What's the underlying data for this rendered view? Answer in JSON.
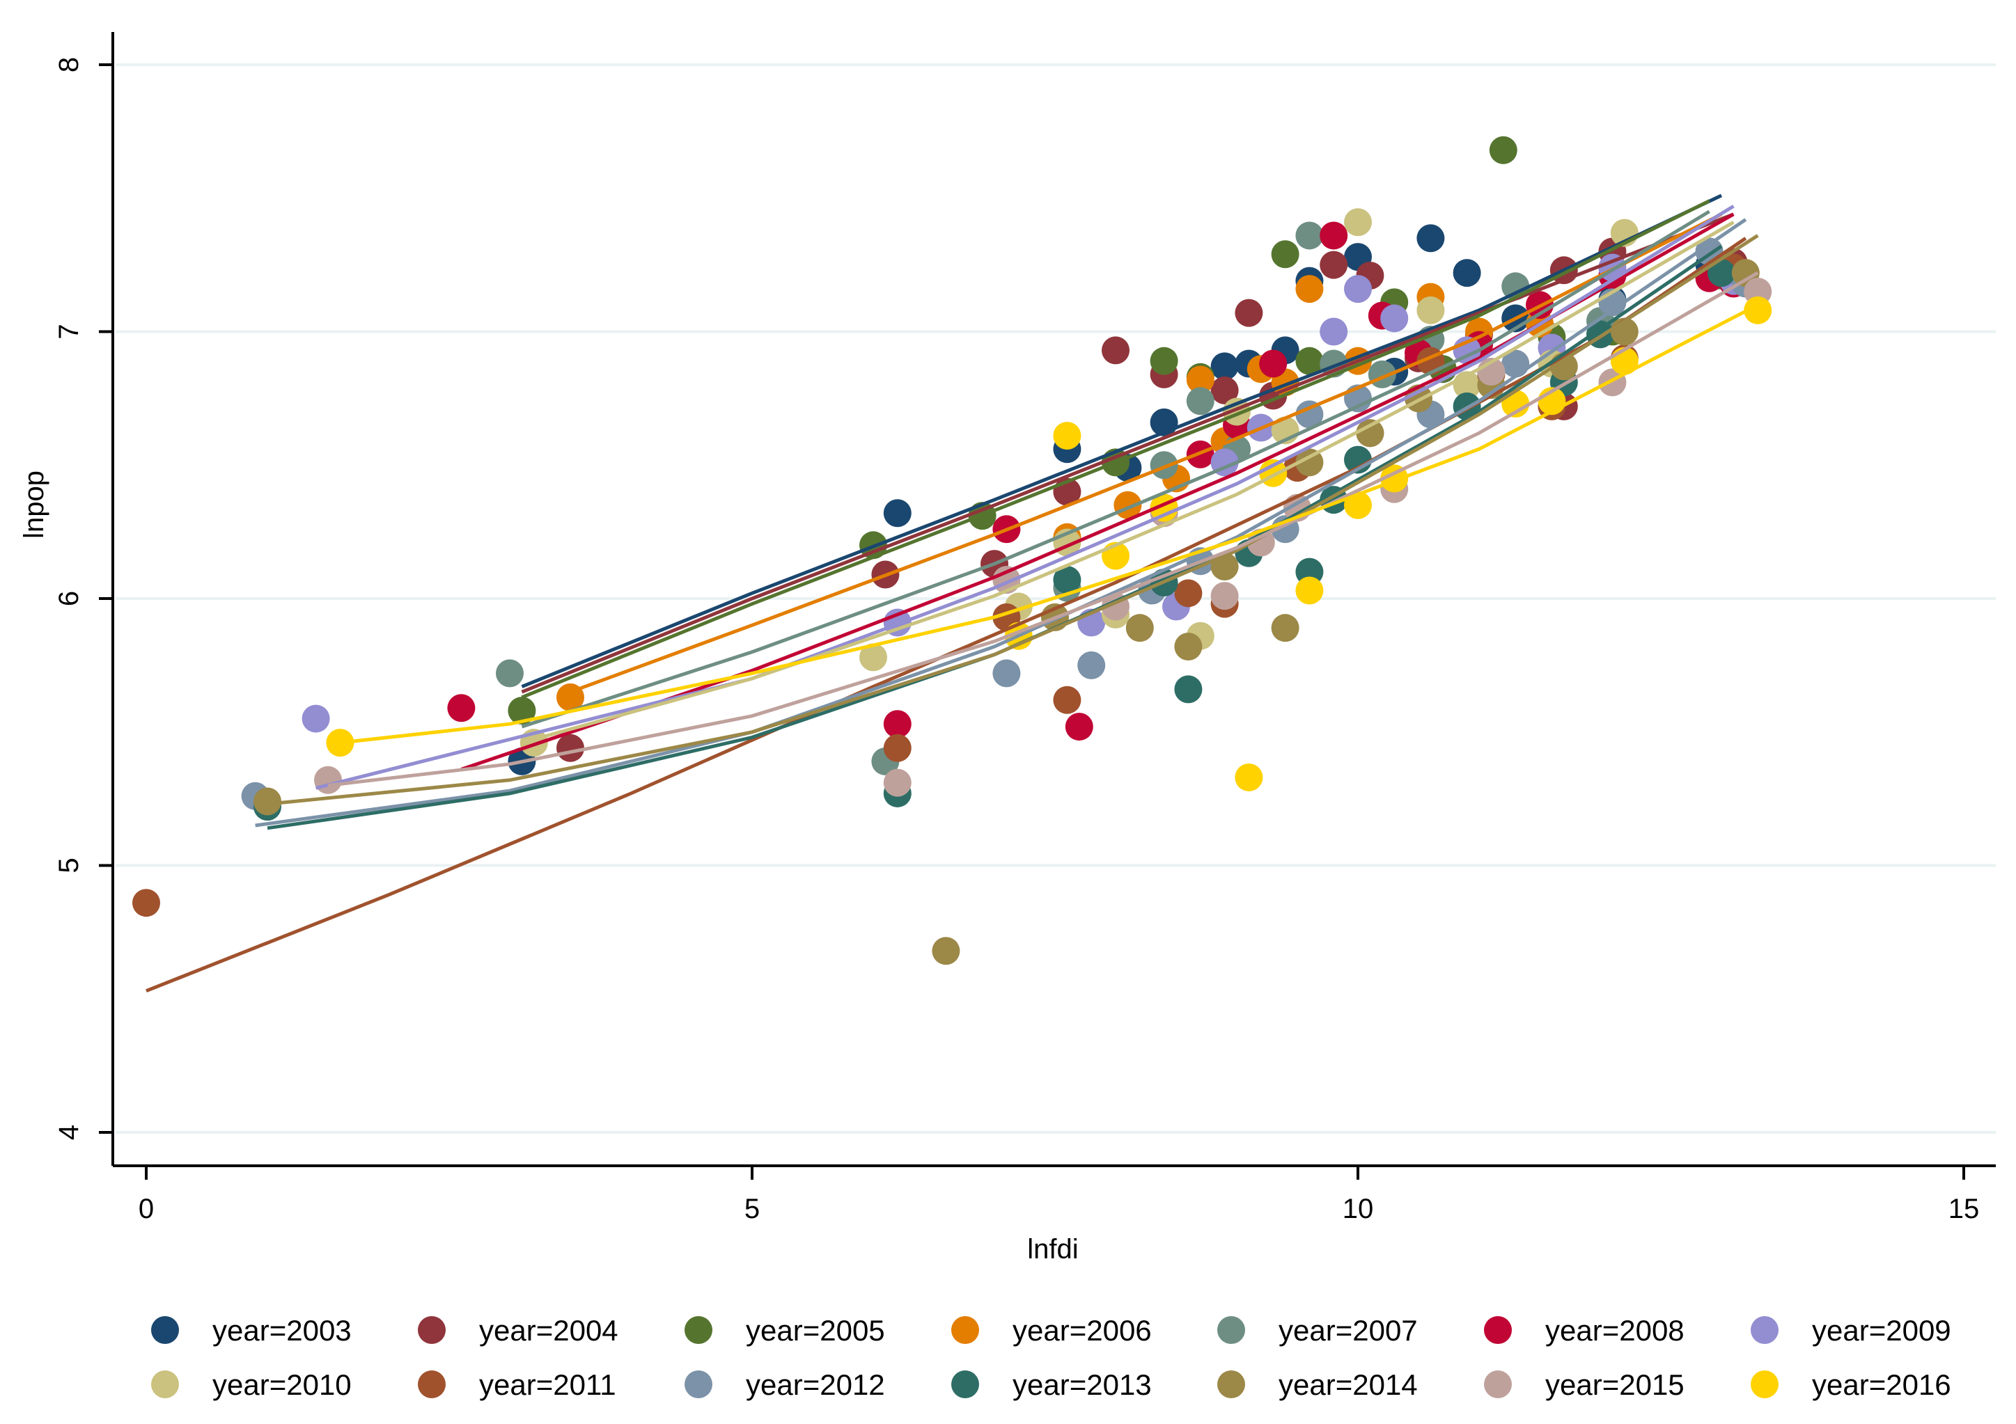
{
  "chart_data": {
    "type": "scatter",
    "xlabel": "lnfdi",
    "ylabel": "lnpop",
    "xlim": [
      0,
      15
    ],
    "ylim": [
      4,
      8
    ],
    "x_ticks": [
      0,
      5,
      10,
      15
    ],
    "y_ticks": [
      4,
      5,
      6,
      7,
      8
    ],
    "grid": "horizontal",
    "legend_position": "bottom",
    "series": [
      {
        "name": "year=2003",
        "color": "#1a476f",
        "points": [
          [
            3.1,
            5.39
          ],
          [
            6.2,
            6.32
          ],
          [
            7.6,
            6.56
          ],
          [
            8.1,
            6.49
          ],
          [
            8.4,
            6.66
          ],
          [
            8.9,
            6.87
          ],
          [
            9.1,
            6.88
          ],
          [
            9.4,
            6.93
          ],
          [
            9.6,
            7.19
          ],
          [
            10.0,
            7.28
          ],
          [
            10.6,
            7.35
          ],
          [
            10.3,
            6.85
          ],
          [
            10.9,
            7.22
          ],
          [
            11.3,
            7.05
          ],
          [
            12.1,
            7.12
          ],
          [
            12.9,
            7.25
          ],
          [
            13.1,
            7.19
          ]
        ],
        "line": [
          [
            3.1,
            5.67
          ],
          [
            5.0,
            6.02
          ],
          [
            7.0,
            6.37
          ],
          [
            9.0,
            6.73
          ],
          [
            11.0,
            7.08
          ],
          [
            13.0,
            7.51
          ]
        ]
      },
      {
        "name": "year=2004",
        "color": "#90353b",
        "points": [
          [
            3.5,
            5.44
          ],
          [
            6.1,
            6.09
          ],
          [
            7.0,
            6.13
          ],
          [
            7.6,
            6.4
          ],
          [
            8.0,
            6.93
          ],
          [
            8.4,
            6.84
          ],
          [
            8.9,
            6.78
          ],
          [
            9.1,
            7.07
          ],
          [
            9.3,
            6.76
          ],
          [
            9.8,
            7.25
          ],
          [
            10.1,
            7.21
          ],
          [
            10.5,
            6.9
          ],
          [
            11.0,
            6.99
          ],
          [
            11.7,
            7.23
          ],
          [
            11.7,
            6.72
          ],
          [
            12.1,
            7.3
          ],
          [
            13.1,
            7.26
          ]
        ],
        "line": [
          [
            3.1,
            5.65
          ],
          [
            5.0,
            6.0
          ],
          [
            7.0,
            6.35
          ],
          [
            9.0,
            6.71
          ],
          [
            11.0,
            7.07
          ],
          [
            13.1,
            7.44
          ]
        ]
      },
      {
        "name": "year=2005",
        "color": "#55752f",
        "points": [
          [
            3.1,
            5.58
          ],
          [
            6.0,
            6.2
          ],
          [
            6.9,
            6.31
          ],
          [
            8.0,
            6.51
          ],
          [
            8.4,
            6.89
          ],
          [
            8.7,
            6.83
          ],
          [
            9.4,
            7.29
          ],
          [
            9.6,
            6.89
          ],
          [
            10.3,
            7.11
          ],
          [
            10.7,
            6.86
          ],
          [
            11.2,
            7.68
          ],
          [
            11.6,
            6.98
          ],
          [
            12.1,
            7.0
          ],
          [
            13.0,
            7.21
          ]
        ],
        "line": [
          [
            3.1,
            5.63
          ],
          [
            5.0,
            5.98
          ],
          [
            7.0,
            6.33
          ],
          [
            9.0,
            6.69
          ],
          [
            11.0,
            7.06
          ],
          [
            12.9,
            7.49
          ]
        ]
      },
      {
        "name": "year=2006",
        "color": "#e37e00",
        "points": [
          [
            3.5,
            5.63
          ],
          [
            7.6,
            6.23
          ],
          [
            8.1,
            6.35
          ],
          [
            8.5,
            6.45
          ],
          [
            8.7,
            6.82
          ],
          [
            8.9,
            6.59
          ],
          [
            9.2,
            6.86
          ],
          [
            9.4,
            6.81
          ],
          [
            9.6,
            7.16
          ],
          [
            10.0,
            6.89
          ],
          [
            10.6,
            7.13
          ],
          [
            11.0,
            7.0
          ],
          [
            11.5,
            7.03
          ],
          [
            13.0,
            7.22
          ]
        ],
        "line": [
          [
            3.5,
            5.65
          ],
          [
            5.0,
            5.9
          ],
          [
            7.0,
            6.24
          ],
          [
            9.0,
            6.6
          ],
          [
            11.0,
            6.98
          ],
          [
            13.0,
            7.44
          ]
        ]
      },
      {
        "name": "year=2007",
        "color": "#6e8e84",
        "points": [
          [
            3.0,
            5.72
          ],
          [
            6.1,
            5.39
          ],
          [
            7.6,
            6.04
          ],
          [
            8.4,
            6.5
          ],
          [
            8.7,
            6.74
          ],
          [
            9.0,
            6.56
          ],
          [
            9.6,
            7.36
          ],
          [
            9.8,
            6.88
          ],
          [
            10.2,
            6.84
          ],
          [
            10.6,
            6.97
          ],
          [
            11.3,
            7.17
          ],
          [
            12.0,
            7.04
          ],
          [
            12.9,
            7.3
          ]
        ],
        "line": [
          [
            3.1,
            5.52
          ],
          [
            5.0,
            5.8
          ],
          [
            7.0,
            6.13
          ],
          [
            9.0,
            6.51
          ],
          [
            11.0,
            6.93
          ],
          [
            12.9,
            7.45
          ]
        ]
      },
      {
        "name": "year=2008",
        "color": "#c10534",
        "points": [
          [
            2.6,
            5.59
          ],
          [
            6.2,
            5.53
          ],
          [
            7.1,
            6.26
          ],
          [
            7.7,
            5.52
          ],
          [
            8.4,
            6.34
          ],
          [
            8.7,
            6.54
          ],
          [
            9.0,
            6.65
          ],
          [
            9.3,
            6.88
          ],
          [
            9.8,
            7.36
          ],
          [
            10.2,
            7.06
          ],
          [
            10.5,
            6.92
          ],
          [
            11.0,
            6.95
          ],
          [
            11.5,
            7.1
          ],
          [
            12.1,
            7.21
          ],
          [
            12.9,
            7.2
          ],
          [
            13.1,
            7.18
          ]
        ],
        "line": [
          [
            2.6,
            5.36
          ],
          [
            5.0,
            5.73
          ],
          [
            7.0,
            6.08
          ],
          [
            9.0,
            6.47
          ],
          [
            11.0,
            6.9
          ],
          [
            13.1,
            7.44
          ]
        ]
      },
      {
        "name": "year=2009",
        "color": "#938dd2",
        "points": [
          [
            1.4,
            5.55
          ],
          [
            6.2,
            5.91
          ],
          [
            7.8,
            5.91
          ],
          [
            8.5,
            5.97
          ],
          [
            8.9,
            6.51
          ],
          [
            9.2,
            6.64
          ],
          [
            9.8,
            7.0
          ],
          [
            10.0,
            7.16
          ],
          [
            10.3,
            7.05
          ],
          [
            10.9,
            6.93
          ],
          [
            11.6,
            6.94
          ],
          [
            12.1,
            7.24
          ],
          [
            13.1,
            7.19
          ]
        ],
        "line": [
          [
            1.4,
            5.29
          ],
          [
            5.0,
            5.7
          ],
          [
            7.0,
            6.04
          ],
          [
            9.0,
            6.43
          ],
          [
            11.0,
            6.89
          ],
          [
            13.1,
            7.47
          ]
        ]
      },
      {
        "name": "year=2010",
        "color": "#cac27e",
        "points": [
          [
            3.2,
            5.46
          ],
          [
            6.0,
            5.78
          ],
          [
            7.2,
            5.97
          ],
          [
            7.6,
            6.21
          ],
          [
            8.0,
            5.94
          ],
          [
            8.7,
            5.86
          ],
          [
            9.0,
            6.7
          ],
          [
            9.4,
            6.63
          ],
          [
            10.0,
            7.41
          ],
          [
            10.6,
            7.08
          ],
          [
            10.9,
            6.8
          ],
          [
            11.6,
            6.88
          ],
          [
            12.2,
            7.37
          ],
          [
            13.0,
            7.24
          ]
        ],
        "line": [
          [
            3.1,
            5.46
          ],
          [
            5.0,
            5.7
          ],
          [
            7.0,
            6.01
          ],
          [
            9.0,
            6.39
          ],
          [
            11.0,
            6.86
          ],
          [
            13.1,
            7.41
          ]
        ]
      },
      {
        "name": "year=2011",
        "color": "#a0522d",
        "points": [
          [
            0.0,
            4.86
          ],
          [
            6.2,
            5.44
          ],
          [
            7.1,
            5.93
          ],
          [
            7.6,
            5.62
          ],
          [
            8.6,
            6.02
          ],
          [
            8.9,
            5.98
          ],
          [
            9.5,
            6.49
          ],
          [
            10.1,
            6.62
          ],
          [
            10.6,
            6.89
          ],
          [
            11.1,
            6.84
          ],
          [
            11.6,
            6.72
          ],
          [
            12.2,
            6.9
          ],
          [
            13.1,
            7.24
          ]
        ],
        "line": [
          [
            0.0,
            4.53
          ],
          [
            2.0,
            4.89
          ],
          [
            4.0,
            5.27
          ],
          [
            6.0,
            5.67
          ],
          [
            8.0,
            6.06
          ],
          [
            10.0,
            6.49
          ],
          [
            12.0,
            6.98
          ],
          [
            13.2,
            7.35
          ]
        ]
      },
      {
        "name": "year=2012",
        "color": "#7b92a8",
        "points": [
          [
            0.9,
            5.26
          ],
          [
            7.1,
            5.72
          ],
          [
            7.8,
            5.75
          ],
          [
            8.3,
            6.03
          ],
          [
            8.7,
            6.14
          ],
          [
            9.4,
            6.26
          ],
          [
            9.6,
            6.69
          ],
          [
            10.0,
            6.75
          ],
          [
            10.6,
            6.69
          ],
          [
            11.3,
            6.88
          ],
          [
            12.1,
            7.11
          ],
          [
            12.9,
            7.3
          ],
          [
            13.2,
            7.18
          ]
        ],
        "line": [
          [
            0.9,
            5.15
          ],
          [
            3.0,
            5.28
          ],
          [
            5.0,
            5.5
          ],
          [
            7.0,
            5.82
          ],
          [
            9.0,
            6.23
          ],
          [
            11.0,
            6.74
          ],
          [
            13.2,
            7.42
          ]
        ]
      },
      {
        "name": "year=2013",
        "color": "#2d6d66",
        "points": [
          [
            1.0,
            5.22
          ],
          [
            6.2,
            5.27
          ],
          [
            7.6,
            6.07
          ],
          [
            8.4,
            6.06
          ],
          [
            8.6,
            5.66
          ],
          [
            9.1,
            6.17
          ],
          [
            9.6,
            6.1
          ],
          [
            9.8,
            6.37
          ],
          [
            10.0,
            6.52
          ],
          [
            10.9,
            6.72
          ],
          [
            11.7,
            6.81
          ],
          [
            12.0,
            6.99
          ],
          [
            13.0,
            7.22
          ]
        ],
        "line": [
          [
            1.0,
            5.14
          ],
          [
            3.0,
            5.27
          ],
          [
            5.0,
            5.48
          ],
          [
            7.0,
            5.79
          ],
          [
            9.0,
            6.19
          ],
          [
            11.0,
            6.7
          ],
          [
            13.0,
            7.32
          ]
        ]
      },
      {
        "name": "year=2014",
        "color": "#9c8847",
        "points": [
          [
            1.0,
            5.24
          ],
          [
            6.6,
            4.68
          ],
          [
            7.5,
            5.93
          ],
          [
            8.2,
            5.89
          ],
          [
            8.6,
            5.82
          ],
          [
            8.9,
            6.12
          ],
          [
            9.4,
            5.89
          ],
          [
            9.6,
            6.51
          ],
          [
            10.1,
            6.62
          ],
          [
            10.5,
            6.75
          ],
          [
            11.1,
            6.8
          ],
          [
            11.7,
            6.87
          ],
          [
            12.2,
            7.0
          ],
          [
            13.2,
            7.22
          ]
        ],
        "line": [
          [
            1.0,
            5.23
          ],
          [
            3.0,
            5.32
          ],
          [
            5.0,
            5.5
          ],
          [
            7.0,
            5.79
          ],
          [
            9.0,
            6.18
          ],
          [
            11.0,
            6.69
          ],
          [
            13.3,
            7.36
          ]
        ]
      },
      {
        "name": "year=2015",
        "color": "#bfa19c",
        "points": [
          [
            1.5,
            5.32
          ],
          [
            6.2,
            5.31
          ],
          [
            7.1,
            6.07
          ],
          [
            8.0,
            5.97
          ],
          [
            8.4,
            6.32
          ],
          [
            8.9,
            6.01
          ],
          [
            9.2,
            6.21
          ],
          [
            9.5,
            6.34
          ],
          [
            10.3,
            6.41
          ],
          [
            11.1,
            6.85
          ],
          [
            12.1,
            6.81
          ],
          [
            13.3,
            7.15
          ]
        ],
        "line": [
          [
            1.5,
            5.3
          ],
          [
            3.0,
            5.38
          ],
          [
            5.0,
            5.56
          ],
          [
            7.0,
            5.84
          ],
          [
            9.0,
            6.19
          ],
          [
            11.0,
            6.62
          ],
          [
            13.3,
            7.22
          ]
        ]
      },
      {
        "name": "year=2016",
        "color": "#ffd200",
        "points": [
          [
            1.6,
            5.46
          ],
          [
            7.2,
            5.86
          ],
          [
            7.6,
            6.61
          ],
          [
            8.0,
            6.16
          ],
          [
            8.4,
            6.34
          ],
          [
            9.1,
            5.33
          ],
          [
            9.3,
            6.47
          ],
          [
            9.6,
            6.03
          ],
          [
            10.0,
            6.35
          ],
          [
            10.3,
            6.45
          ],
          [
            11.3,
            6.73
          ],
          [
            11.6,
            6.74
          ],
          [
            12.2,
            6.89
          ],
          [
            13.3,
            7.08
          ]
        ],
        "line": [
          [
            1.6,
            5.46
          ],
          [
            3.0,
            5.53
          ],
          [
            5.0,
            5.72
          ],
          [
            7.0,
            5.93
          ],
          [
            9.0,
            6.22
          ],
          [
            11.0,
            6.56
          ],
          [
            13.3,
            7.1
          ]
        ]
      }
    ]
  }
}
